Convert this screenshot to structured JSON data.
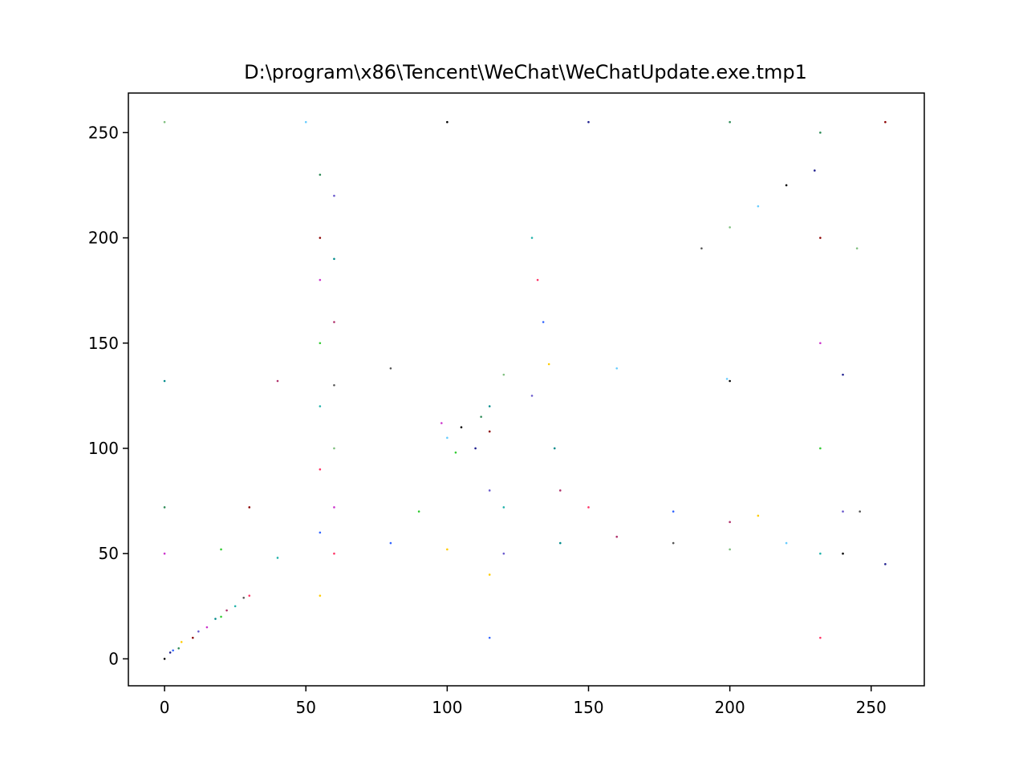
{
  "chart_data": {
    "type": "scatter",
    "title": "D:\\program\\x86\\Tencent\\WeChat\\WeChatUpdate.exe.tmp1",
    "xlabel": "",
    "ylabel": "",
    "xlim": [
      -12.8,
      268.8
    ],
    "ylim": [
      -12.8,
      268.8
    ],
    "xticks": [
      0,
      50,
      100,
      150,
      200,
      250
    ],
    "yticks": [
      0,
      50,
      100,
      150,
      200,
      250
    ],
    "grid": false,
    "legend": "none",
    "point_colors": [
      "#000000",
      "#1f1f8f",
      "#2e8b57",
      "#8b0000",
      "#cc33cc",
      "#33cc33",
      "#20b2aa",
      "#ff3366",
      "#3366ff",
      "#ffcc00",
      "#6a5acd",
      "#008b8b",
      "#b0306b",
      "#555555",
      "#7fbf7f",
      "#66ccff"
    ],
    "series": [
      {
        "points": [
          [
            0,
            0
          ],
          [
            2,
            3
          ],
          [
            5,
            5
          ],
          [
            10,
            10
          ],
          [
            15,
            15
          ],
          [
            20,
            20
          ],
          [
            25,
            25
          ],
          [
            30,
            30
          ],
          [
            3,
            4
          ],
          [
            6,
            8
          ],
          [
            12,
            13
          ],
          [
            18,
            19
          ],
          [
            22,
            23
          ],
          [
            28,
            29
          ],
          [
            0,
            255
          ],
          [
            50,
            255
          ],
          [
            100,
            255
          ],
          [
            150,
            255
          ],
          [
            200,
            255
          ],
          [
            255,
            255
          ],
          [
            0,
            50
          ],
          [
            20,
            52
          ],
          [
            40,
            48
          ],
          [
            60,
            50
          ],
          [
            80,
            55
          ],
          [
            100,
            52
          ],
          [
            120,
            50
          ],
          [
            140,
            55
          ],
          [
            160,
            58
          ],
          [
            180,
            55
          ],
          [
            200,
            52
          ],
          [
            220,
            55
          ],
          [
            240,
            50
          ],
          [
            255,
            45
          ],
          [
            0,
            72
          ],
          [
            30,
            72
          ],
          [
            60,
            72
          ],
          [
            90,
            70
          ],
          [
            120,
            72
          ],
          [
            150,
            72
          ],
          [
            180,
            70
          ],
          [
            210,
            68
          ],
          [
            240,
            70
          ],
          [
            0,
            132
          ],
          [
            40,
            132
          ],
          [
            80,
            138
          ],
          [
            120,
            135
          ],
          [
            160,
            138
          ],
          [
            200,
            132
          ],
          [
            240,
            135
          ],
          [
            55,
            230
          ],
          [
            55,
            200
          ],
          [
            55,
            180
          ],
          [
            55,
            150
          ],
          [
            55,
            120
          ],
          [
            55,
            90
          ],
          [
            55,
            60
          ],
          [
            55,
            30
          ],
          [
            60,
            220
          ],
          [
            60,
            190
          ],
          [
            60,
            160
          ],
          [
            60,
            130
          ],
          [
            60,
            100
          ],
          [
            100,
            105
          ],
          [
            105,
            110
          ],
          [
            110,
            100
          ],
          [
            112,
            115
          ],
          [
            115,
            108
          ],
          [
            98,
            112
          ],
          [
            103,
            98
          ],
          [
            130,
            200
          ],
          [
            132,
            180
          ],
          [
            134,
            160
          ],
          [
            136,
            140
          ],
          [
            130,
            125
          ],
          [
            138,
            100
          ],
          [
            140,
            80
          ],
          [
            190,
            195
          ],
          [
            200,
            205
          ],
          [
            210,
            215
          ],
          [
            220,
            225
          ],
          [
            230,
            232
          ],
          [
            232,
            250
          ],
          [
            232,
            200
          ],
          [
            232,
            150
          ],
          [
            232,
            100
          ],
          [
            232,
            50
          ],
          [
            232,
            10
          ],
          [
            115,
            10
          ],
          [
            115,
            40
          ],
          [
            115,
            80
          ],
          [
            115,
            120
          ],
          [
            200,
            65
          ],
          [
            246,
            70
          ],
          [
            245,
            195
          ],
          [
            199,
            133
          ]
        ]
      }
    ]
  }
}
